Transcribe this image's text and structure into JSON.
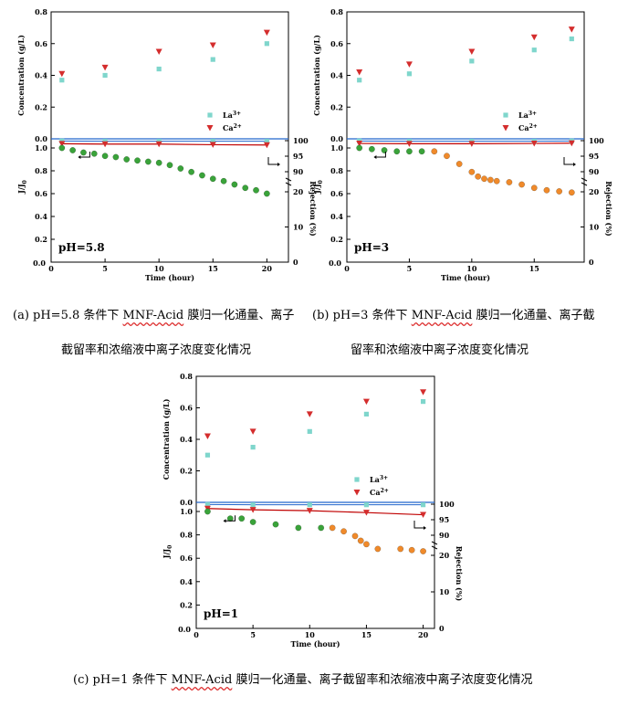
{
  "axis_labels": {
    "concentration": "Concentration (g/L)",
    "flux": "J/J",
    "flux_sub": "0",
    "rejection": "Rejection (%)",
    "time": "Time (hour)"
  },
  "legend": {
    "la": "La",
    "la_sup": "3+",
    "ca": "Ca",
    "ca_sup": "2+"
  },
  "colors": {
    "la": "#7fd6cc",
    "ca": "#d42d2d",
    "rejection_line": "#c00000",
    "zero_line": "#2266cc",
    "green": "#3aa33a",
    "orange": "#f08a2a"
  },
  "captions": {
    "a_line1_pre": "(a) pH=5.8 条件下 ",
    "a_line1_mnf": "MNF-Acid",
    "a_line1_post": " 膜归一化通量、离子",
    "a_line2": "截留率和浓缩液中离子浓度变化情况",
    "b_line1_pre": "(b) pH=3 条件下 ",
    "b_line1_mnf": "MNF-Acid",
    "b_line1_post": " 膜归一化通量、离子截",
    "b_line2": "留率和浓缩液中离子浓度变化情况",
    "c_line1_pre": "(c) pH=1 条件下 ",
    "c_line1_mnf": "MNF-Acid",
    "c_line1_post": " 膜归一化通量、离子截留率和浓缩液中离子浓度变化情况"
  },
  "chart_data": [
    {
      "id": "a",
      "type": "scatter",
      "label": "pH=5.8",
      "x_ticks": [
        0,
        5,
        10,
        15,
        20
      ],
      "xlim": [
        0,
        22
      ],
      "concentration": {
        "ylim": [
          0,
          0.8
        ],
        "ticks": [
          "0.0",
          "0.2",
          "0.4",
          "0.6",
          "0.8"
        ],
        "series": [
          {
            "name": "La3+",
            "x": [
              1,
              5,
              10,
              15,
              20
            ],
            "y": [
              0.37,
              0.4,
              0.44,
              0.5,
              0.6
            ]
          },
          {
            "name": "Ca2+",
            "x": [
              1,
              5,
              10,
              15,
              20
            ],
            "y": [
              0.41,
              0.45,
              0.55,
              0.59,
              0.67
            ]
          }
        ]
      },
      "flux": {
        "ylim": [
          0,
          1.0
        ],
        "ticks": [
          "0.0",
          "0.2",
          "0.4",
          "0.6",
          "0.8",
          "1.0"
        ],
        "green_x": [
          1,
          2,
          3,
          4,
          5,
          6,
          7,
          8,
          9,
          10,
          11,
          12,
          13,
          14,
          15,
          16,
          17,
          18,
          19,
          20
        ],
        "green_y": [
          1.0,
          0.98,
          0.96,
          0.95,
          0.93,
          0.92,
          0.9,
          0.89,
          0.88,
          0.87,
          0.85,
          0.82,
          0.79,
          0.76,
          0.73,
          0.71,
          0.68,
          0.65,
          0.63,
          0.6
        ],
        "orange_x": [],
        "orange_y": []
      },
      "rejection": {
        "ticks": [
          "0",
          "10",
          "20",
          "90",
          "95",
          "100"
        ],
        "la_x": [
          1,
          5,
          10,
          15,
          20
        ],
        "la_y": [
          99.9,
          99.8,
          99.8,
          99.8,
          99.8
        ],
        "ca_x": [
          1,
          5,
          10,
          15,
          20
        ],
        "ca_y": [
          99.0,
          98.9,
          98.9,
          98.7,
          98.6
        ]
      }
    },
    {
      "id": "b",
      "type": "scatter",
      "label": "pH=3",
      "x_ticks": [
        0,
        5,
        10,
        15
      ],
      "xlim": [
        0,
        19
      ],
      "concentration": {
        "ylim": [
          0,
          0.8
        ],
        "ticks": [
          "0.0",
          "0.2",
          "0.4",
          "0.6",
          "0.8"
        ],
        "series": [
          {
            "name": "La3+",
            "x": [
              1,
              5,
              10,
              15,
              18
            ],
            "y": [
              0.37,
              0.41,
              0.49,
              0.56,
              0.63
            ]
          },
          {
            "name": "Ca2+",
            "x": [
              1,
              5,
              10,
              15,
              18
            ],
            "y": [
              0.42,
              0.47,
              0.55,
              0.64,
              0.69
            ]
          }
        ]
      },
      "flux": {
        "ylim": [
          0,
          1.0
        ],
        "ticks": [
          "0.0",
          "0.2",
          "0.4",
          "0.6",
          "0.8",
          "1.0"
        ],
        "green_x": [
          1,
          2,
          3,
          4,
          5,
          6
        ],
        "green_y": [
          1.0,
          0.99,
          0.98,
          0.97,
          0.97,
          0.97
        ],
        "orange_x": [
          7,
          8,
          9,
          10,
          10.5,
          11,
          11.5,
          12,
          13,
          14,
          15,
          16,
          17,
          18
        ],
        "orange_y": [
          0.97,
          0.93,
          0.86,
          0.79,
          0.75,
          0.73,
          0.72,
          0.71,
          0.7,
          0.68,
          0.65,
          0.63,
          0.62,
          0.61
        ]
      },
      "rejection": {
        "ticks": [
          "0",
          "10",
          "20",
          "90",
          "95",
          "100"
        ],
        "la_x": [
          1,
          5,
          10,
          15,
          18
        ],
        "la_y": [
          99.9,
          99.8,
          99.8,
          99.8,
          99.9
        ],
        "ca_x": [
          1,
          5,
          10,
          15,
          18
        ],
        "ca_y": [
          99.1,
          99.0,
          99.0,
          99.1,
          99.2
        ]
      }
    },
    {
      "id": "c",
      "type": "scatter",
      "label": "pH=1",
      "x_ticks": [
        0,
        5,
        10,
        15,
        20
      ],
      "xlim": [
        0,
        21
      ],
      "concentration": {
        "ylim": [
          0,
          0.8
        ],
        "ticks": [
          "0.0",
          "0.2",
          "0.4",
          "0.6",
          "0.8"
        ],
        "series": [
          {
            "name": "La3+",
            "x": [
              1,
              5,
              10,
              15,
              20
            ],
            "y": [
              0.3,
              0.35,
              0.45,
              0.56,
              0.64
            ]
          },
          {
            "name": "Ca2+",
            "x": [
              1,
              5,
              10,
              15,
              20
            ],
            "y": [
              0.42,
              0.45,
              0.56,
              0.64,
              0.7
            ]
          }
        ]
      },
      "flux": {
        "ylim": [
          0,
          1.0
        ],
        "ticks": [
          "0.0",
          "0.2",
          "0.4",
          "0.6",
          "0.8",
          "1.0"
        ],
        "green_x": [
          1,
          3,
          4,
          5,
          7,
          9,
          11
        ],
        "green_y": [
          1.0,
          0.94,
          0.94,
          0.91,
          0.89,
          0.86,
          0.86
        ],
        "orange_x": [
          12,
          13,
          14,
          14.5,
          15,
          16,
          18,
          19,
          20
        ],
        "orange_y": [
          0.86,
          0.83,
          0.79,
          0.75,
          0.72,
          0.68,
          0.68,
          0.67,
          0.66
        ]
      },
      "rejection": {
        "ticks": [
          "0",
          "10",
          "20",
          "90",
          "95",
          "100"
        ],
        "la_x": [
          1,
          5,
          10,
          15,
          20
        ],
        "la_y": [
          99.9,
          99.8,
          99.8,
          99.8,
          99.8
        ],
        "ca_x": [
          1,
          5,
          10,
          15,
          20
        ],
        "ca_y": [
          98.6,
          98.2,
          97.9,
          97.3,
          96.6
        ]
      }
    }
  ]
}
